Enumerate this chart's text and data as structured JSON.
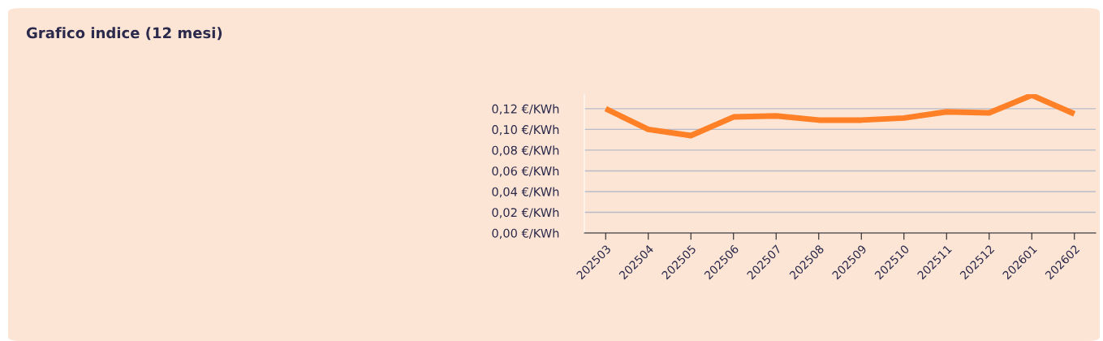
{
  "chart_data": {
    "type": "line",
    "title": "Grafico indice (12 mesi)",
    "categories": [
      "202503",
      "202504",
      "202505",
      "202506",
      "202507",
      "202508",
      "202509",
      "202510",
      "202511",
      "202512",
      "202601",
      "202602"
    ],
    "series": [
      {
        "color": "#ff8026",
        "values": [
          0.12,
          0.1,
          0.094,
          0.112,
          0.113,
          0.109,
          0.109,
          0.111,
          0.117,
          0.116,
          0.133,
          0.115
        ]
      }
    ],
    "ylim": [
      0,
      0.134
    ],
    "yticks": [
      {
        "value": 0,
        "label": "0,00 €/KWh"
      },
      {
        "value": 0.02,
        "label": "0,02 €/KWh"
      },
      {
        "value": 0.04,
        "label": "0,04 €/KWh"
      },
      {
        "value": 0.06,
        "label": "0,06 €/KWh"
      },
      {
        "value": 0.08,
        "label": "0,08 €/KWh"
      },
      {
        "value": 0.1,
        "label": "0,10 €/KWh"
      },
      {
        "value": 0.12,
        "label": "0,12 €/KWh"
      }
    ],
    "grid": "y",
    "legend": false,
    "marker": "none",
    "line_style": "solid"
  }
}
